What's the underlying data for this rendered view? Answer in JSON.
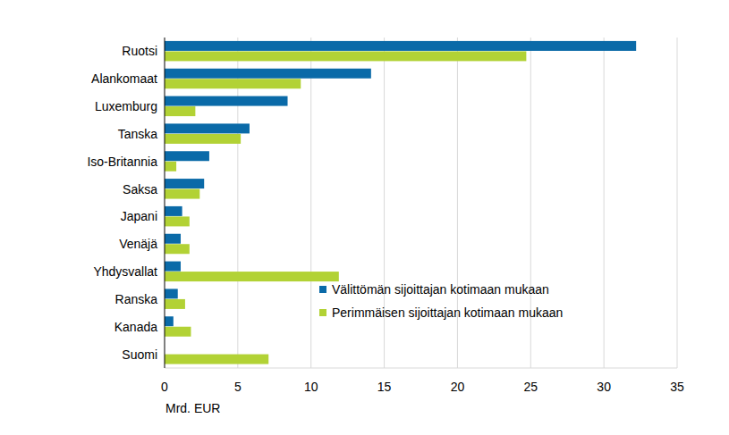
{
  "chart_data": {
    "type": "bar",
    "orientation": "horizontal",
    "categories": [
      "Ruotsi",
      "Alankomaat",
      "Luxemburg",
      "Tanska",
      "Iso-Britannia",
      "Saksa",
      "Japani",
      "Venäjä",
      "Yhdysvallat",
      "Ranska",
      "Kanada",
      "Suomi"
    ],
    "series": [
      {
        "name": "Välittömän sijoittajan kotimaan mukaan",
        "color": "#0a6aa8",
        "values": [
          32.2,
          14.1,
          8.4,
          5.8,
          3.05,
          2.7,
          1.2,
          1.1,
          1.1,
          0.9,
          0.6,
          null
        ]
      },
      {
        "name": "Perimmäisen sijoittajan kotimaan mukaan",
        "color": "#b2d235",
        "values": [
          24.7,
          9.3,
          2.1,
          5.2,
          0.8,
          2.4,
          1.7,
          1.7,
          11.9,
          1.4,
          1.8,
          7.1
        ]
      }
    ],
    "xlabel": "Mrd. EUR",
    "xlim": [
      0,
      35
    ],
    "xticks": [
      0,
      5,
      10,
      15,
      20,
      25,
      30,
      35
    ],
    "grid": true,
    "legend": "lower right"
  }
}
